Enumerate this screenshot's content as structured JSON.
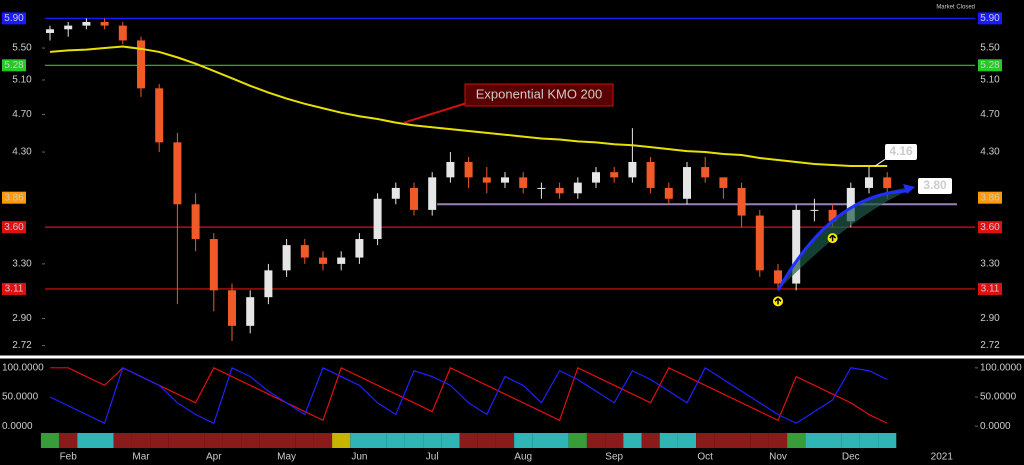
{
  "status": "Market Closed",
  "chart_data": [
    {
      "type": "candlestick",
      "log_scale": true,
      "categories": [
        null,
        "Feb",
        null,
        null,
        null,
        "Mar",
        null,
        null,
        null,
        "Apr",
        null,
        null,
        null,
        "May",
        null,
        null,
        null,
        "Jun",
        null,
        null,
        null,
        "Jul",
        null,
        null,
        null,
        null,
        "Aug",
        null,
        null,
        null,
        null,
        "Sep",
        null,
        null,
        null,
        null,
        "Oct",
        null,
        null,
        null,
        "Nov",
        null,
        null,
        null,
        "Dec",
        null,
        null,
        null,
        null,
        "2021",
        null,
        null
      ],
      "open": [
        5.7,
        5.75,
        5.8,
        5.85,
        5.8,
        5.6,
        5.0,
        4.4,
        3.8,
        3.5,
        3.1,
        2.85,
        3.05,
        3.25,
        3.45,
        3.35,
        3.3,
        3.35,
        3.5,
        3.85,
        3.95,
        3.75,
        4.05,
        4.2,
        4.05,
        4.0,
        4.05,
        3.95,
        3.95,
        3.9,
        4.0,
        4.1,
        4.05,
        4.2,
        3.95,
        3.85,
        4.15,
        4.05,
        3.95,
        3.7,
        3.25,
        3.15,
        3.75,
        3.75,
        3.65,
        3.95,
        4.05,
        null,
        null,
        null,
        null,
        null
      ],
      "high": [
        5.8,
        5.85,
        5.9,
        5.9,
        5.85,
        5.65,
        5.05,
        4.5,
        3.9,
        3.55,
        3.15,
        3.1,
        3.3,
        3.5,
        3.5,
        3.4,
        3.4,
        3.55,
        3.9,
        4.0,
        4.0,
        4.1,
        4.3,
        4.25,
        4.15,
        4.1,
        4.1,
        4.0,
        4.0,
        4.05,
        4.15,
        4.15,
        4.55,
        4.25,
        4.0,
        4.2,
        4.25,
        4.05,
        4.0,
        3.75,
        3.3,
        3.8,
        3.85,
        3.8,
        4.0,
        4.15,
        4.1,
        null,
        null,
        null,
        null,
        null
      ],
      "low": [
        5.6,
        5.65,
        5.75,
        5.75,
        5.55,
        4.9,
        4.3,
        3.0,
        3.4,
        2.95,
        2.75,
        2.8,
        3.0,
        3.2,
        3.3,
        3.25,
        3.25,
        3.3,
        3.45,
        3.8,
        3.7,
        3.7,
        4.0,
        3.95,
        3.9,
        3.95,
        3.9,
        3.85,
        3.85,
        3.85,
        3.95,
        4.0,
        4.0,
        3.9,
        3.8,
        3.8,
        4.0,
        3.85,
        3.6,
        3.2,
        3.1,
        3.1,
        3.65,
        3.6,
        3.6,
        3.9,
        3.85,
        null,
        null,
        null,
        null,
        null
      ],
      "close": [
        5.75,
        5.8,
        5.85,
        5.8,
        5.6,
        5.0,
        4.4,
        3.8,
        3.5,
        3.1,
        2.85,
        3.05,
        3.25,
        3.45,
        3.35,
        3.3,
        3.35,
        3.5,
        3.85,
        3.95,
        3.75,
        4.05,
        4.2,
        4.05,
        4.0,
        4.05,
        3.95,
        3.95,
        3.9,
        4.0,
        4.1,
        4.05,
        4.2,
        3.95,
        3.85,
        4.15,
        4.05,
        3.95,
        3.7,
        3.25,
        3.15,
        3.75,
        3.75,
        3.65,
        3.95,
        4.05,
        3.95,
        null,
        null,
        null,
        null,
        null
      ],
      "up_color": "#e6e6e6",
      "down_color": "#f05a28",
      "ma": {
        "name": "Exponential KMO 200",
        "color": "#e8e000",
        "values": [
          5.45,
          5.47,
          5.48,
          5.5,
          5.52,
          5.49,
          5.45,
          5.38,
          5.3,
          5.21,
          5.12,
          5.03,
          4.95,
          4.88,
          4.82,
          4.77,
          4.72,
          4.68,
          4.65,
          4.61,
          4.58,
          4.56,
          4.54,
          4.52,
          4.5,
          4.48,
          4.46,
          4.44,
          4.43,
          4.41,
          4.4,
          4.38,
          4.37,
          4.35,
          4.33,
          4.31,
          4.3,
          4.28,
          4.27,
          4.24,
          4.22,
          4.2,
          4.18,
          4.17,
          4.16,
          4.16,
          4.16,
          null,
          null,
          null,
          null,
          null
        ]
      },
      "ylim": [
        2.66,
        6.09
      ],
      "yticks": [
        {
          "value": 5.5,
          "label": "5.50"
        },
        {
          "value": 5.1,
          "label": "5.10"
        },
        {
          "value": 4.7,
          "label": "4.70"
        },
        {
          "value": 4.3,
          "label": "4.30"
        },
        {
          "value": 3.3,
          "label": "3.30"
        },
        {
          "value": 2.9,
          "label": "2.90"
        },
        {
          "value": 2.72,
          "label": "2.72"
        }
      ],
      "levels": [
        {
          "value": 5.9,
          "label": "5.90",
          "color": "#1a1aff",
          "line": true
        },
        {
          "value": 5.28,
          "label": "5.28",
          "color": "#22cc22",
          "line": true
        },
        {
          "value": 3.86,
          "label": "3.86",
          "color": "#ff9900",
          "line": false
        },
        {
          "value": 3.6,
          "label": "3.60",
          "color": "#e01010",
          "line": true
        },
        {
          "value": 3.11,
          "label": "3.11",
          "color": "#e01010",
          "line": true
        }
      ],
      "callouts": [
        {
          "value": 4.16,
          "label": "4.16"
        },
        {
          "value": 3.8,
          "label": "3.80"
        }
      ]
    },
    {
      "type": "oscillator",
      "ylim": [
        -10,
        110
      ],
      "yticks": [
        {
          "value": 100,
          "label": "100.0000"
        },
        {
          "value": 50,
          "label": "50.0000"
        },
        {
          "value": 0,
          "label": "0.0000"
        }
      ],
      "series": [
        {
          "color": "#e01010",
          "values": [
            100,
            100,
            85,
            70,
            100,
            85,
            70,
            55,
            40,
            100,
            85,
            70,
            55,
            40,
            25,
            10,
            100,
            85,
            70,
            55,
            40,
            25,
            100,
            85,
            70,
            55,
            40,
            25,
            10,
            100,
            85,
            70,
            55,
            40,
            100,
            85,
            70,
            55,
            40,
            25,
            10,
            85,
            70,
            55,
            40,
            20,
            5,
            null,
            null,
            null,
            null,
            null
          ]
        },
        {
          "color": "#2020ff",
          "values": [
            50,
            35,
            20,
            5,
            100,
            85,
            70,
            40,
            20,
            5,
            100,
            85,
            60,
            40,
            20,
            100,
            85,
            70,
            40,
            20,
            95,
            85,
            70,
            40,
            20,
            85,
            70,
            40,
            95,
            80,
            60,
            40,
            95,
            80,
            60,
            40,
            100,
            80,
            60,
            40,
            20,
            5,
            25,
            45,
            100,
            95,
            80,
            null,
            null,
            null,
            null,
            null
          ]
        }
      ],
      "strip_colors": [
        "#3a9b3a",
        "#8b1a1a",
        "#2fb5b5",
        "#2fb5b5",
        "#8b1a1a",
        "#8b1a1a",
        "#8b1a1a",
        "#8b1a1a",
        "#8b1a1a",
        "#8b1a1a",
        "#8b1a1a",
        "#8b1a1a",
        "#8b1a1a",
        "#8b1a1a",
        "#8b1a1a",
        "#8b1a1a",
        "#c8b400",
        "#2fb5b5",
        "#2fb5b5",
        "#2fb5b5",
        "#2fb5b5",
        "#2fb5b5",
        "#2fb5b5",
        "#8b1a1a",
        "#8b1a1a",
        "#8b1a1a",
        "#2fb5b5",
        "#2fb5b5",
        "#2fb5b5",
        "#3a9b3a",
        "#8b1a1a",
        "#8b1a1a",
        "#2fb5b5",
        "#8b1a1a",
        "#2fb5b5",
        "#2fb5b5",
        "#8b1a1a",
        "#8b1a1a",
        "#8b1a1a",
        "#8b1a1a",
        "#8b1a1a",
        "#3a9b3a",
        "#2fb5b5",
        "#2fb5b5",
        "#2fb5b5",
        "#2fb5b5",
        "#2fb5b5",
        null,
        null,
        null,
        null,
        null
      ]
    }
  ]
}
